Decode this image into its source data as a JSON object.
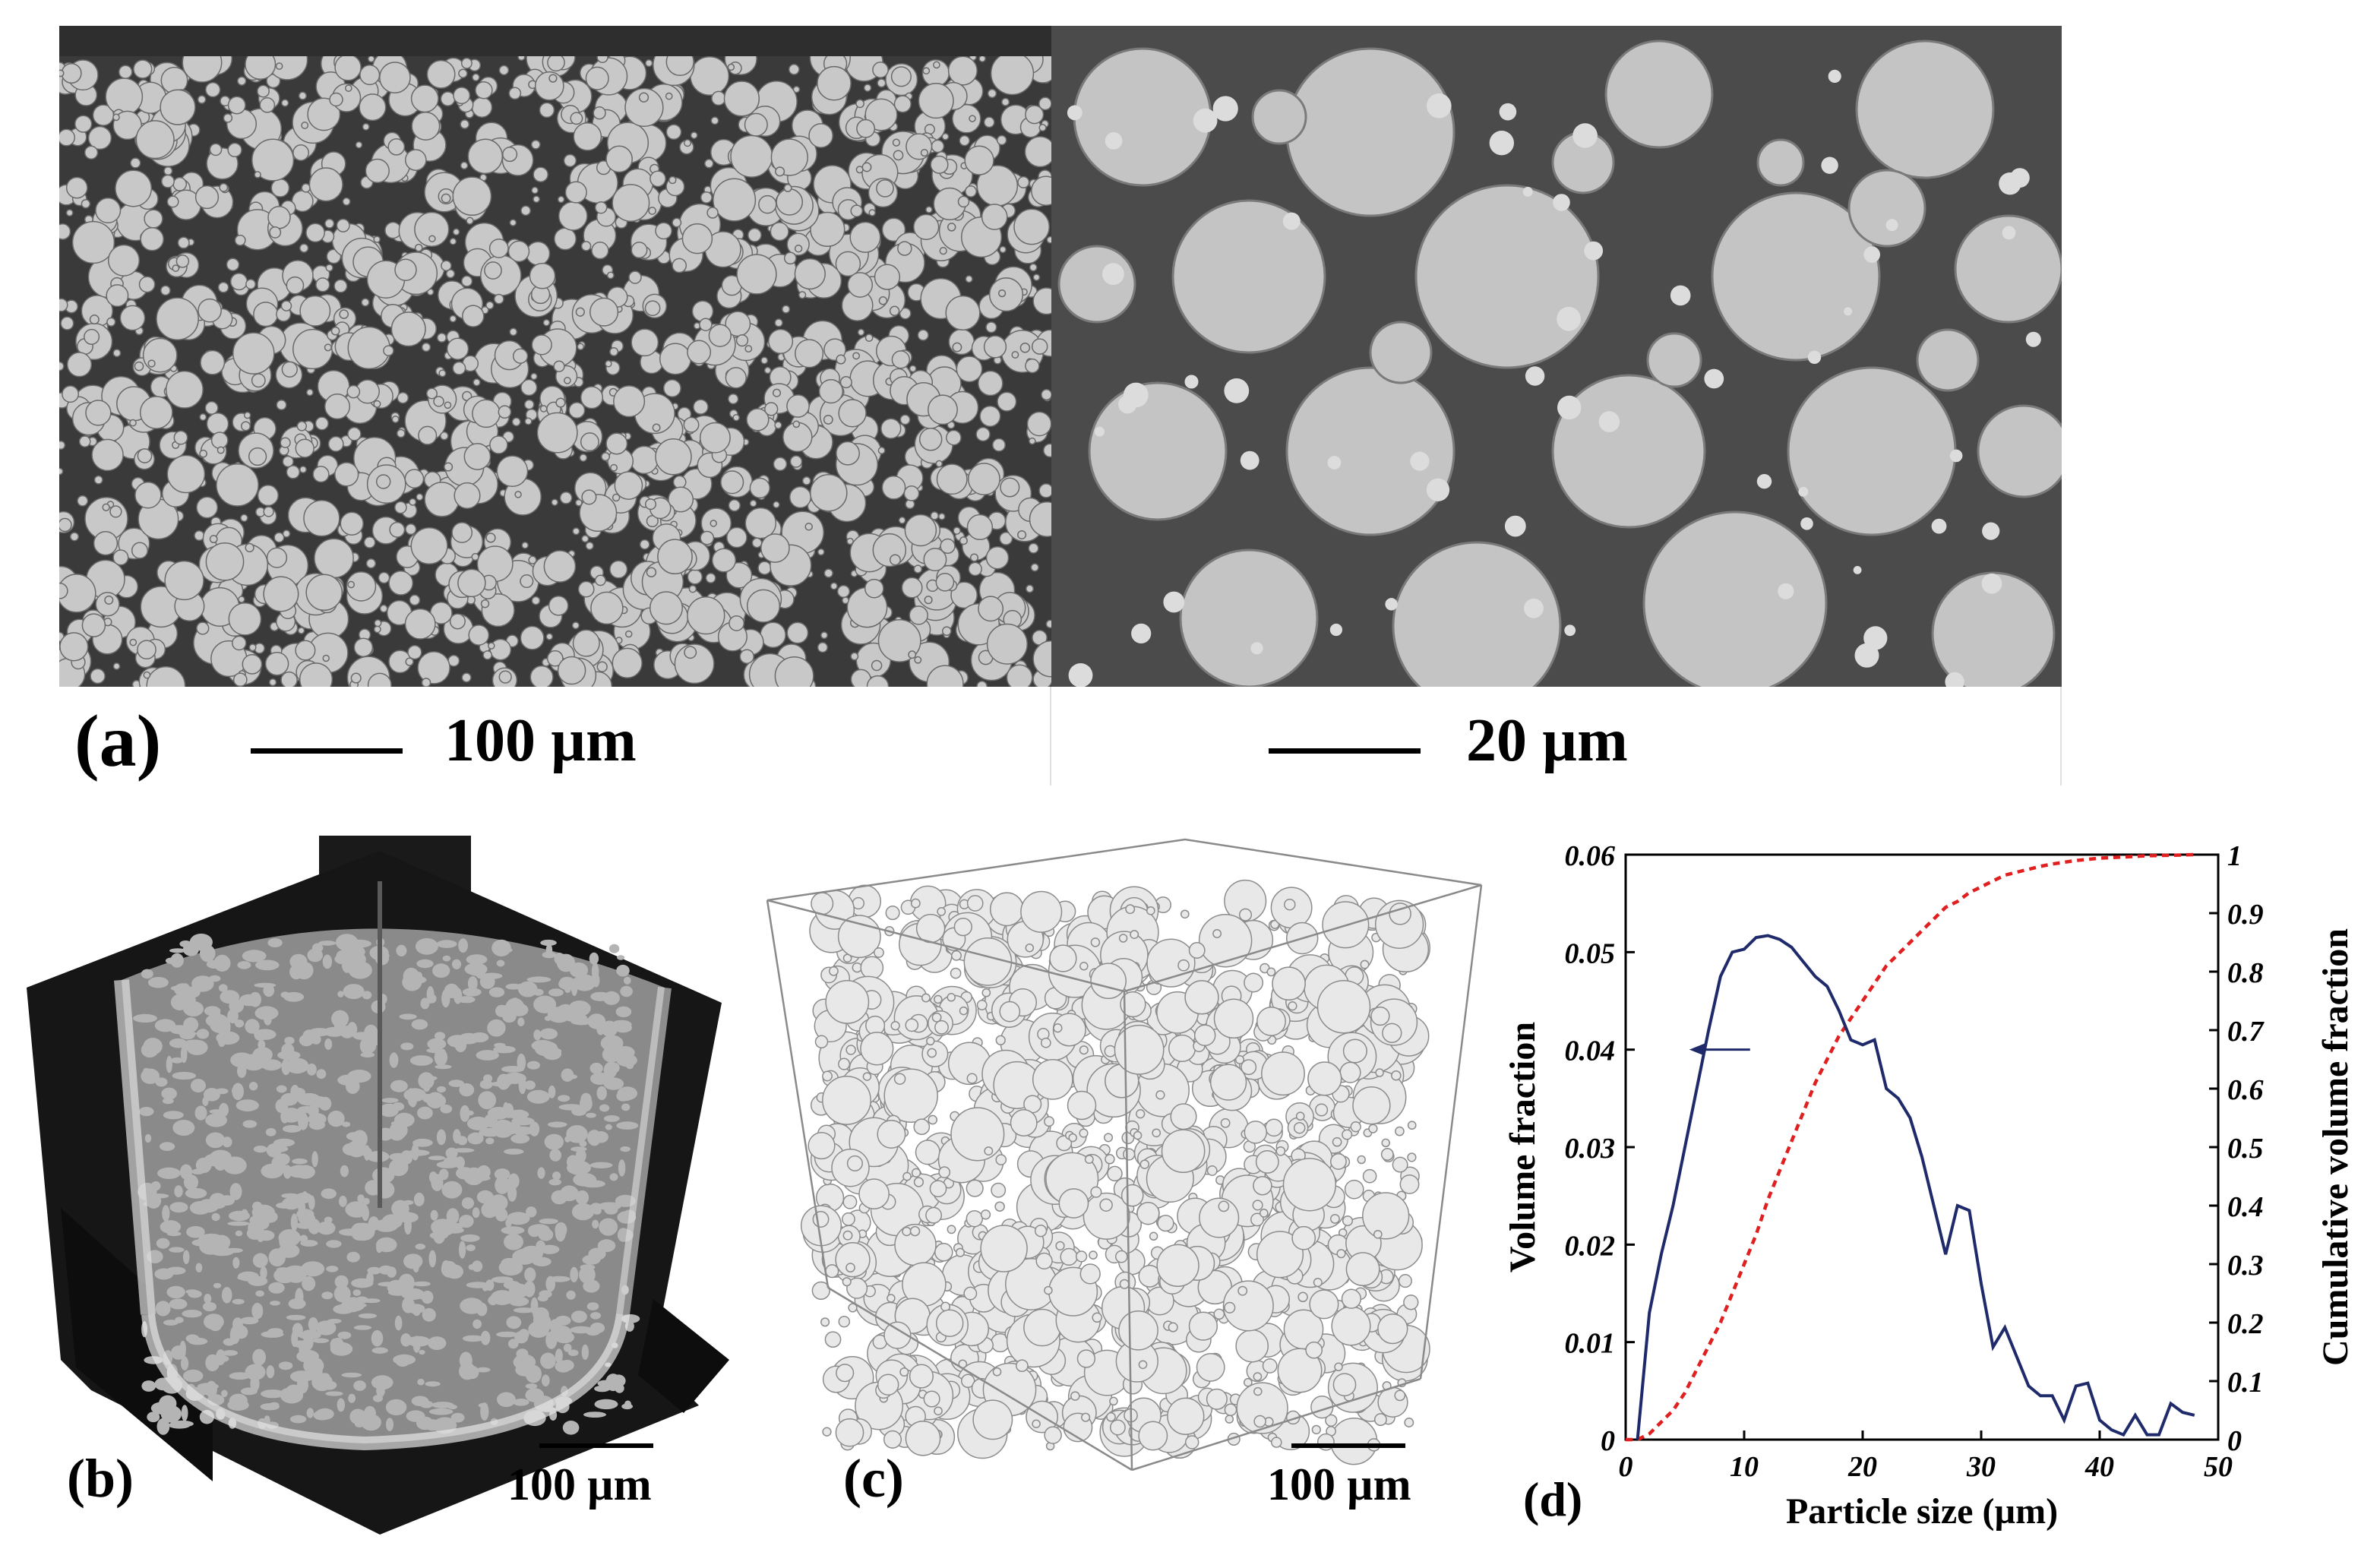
{
  "panel_a": {
    "label": "(a)",
    "scale_left": "100 µm",
    "scale_right": "20 µm"
  },
  "panel_b": {
    "label": "(b)",
    "scale": "100 µm"
  },
  "panel_c": {
    "label": "(c)",
    "scale": "100 µm"
  },
  "panel_d": {
    "label": "(d)"
  },
  "colors": {
    "sem_background": "#3a3a3a",
    "particle": "#c8c8c8",
    "volume_fraction_line": "#1f2a6b",
    "cumulative_line": "#e02020"
  },
  "chart_data": {
    "type": "line",
    "xlabel": "Particle size (µm)",
    "ylabel": "Volume fraction",
    "y2label": "Cumulative volume fraction",
    "xlim": [
      0,
      50
    ],
    "ylim": [
      0,
      0.06
    ],
    "y2lim": [
      0,
      1
    ],
    "xticks": [
      "0",
      "10",
      "20",
      "30",
      "40",
      "50"
    ],
    "yticks": [
      "0",
      "0.01",
      "0.02",
      "0.03",
      "0.04",
      "0.05",
      "0.06"
    ],
    "y2ticks": [
      "0",
      "0.1",
      "0.2",
      "0.3",
      "0.4",
      "0.5",
      "0.6",
      "0.7",
      "0.8",
      "0.9",
      "1"
    ],
    "series": [
      {
        "axis": "left",
        "color": "#1f2a6b",
        "style": "solid",
        "x": [
          1,
          2,
          3,
          4,
          5,
          6,
          7,
          8,
          9,
          10,
          11,
          12,
          13,
          14,
          15,
          16,
          17,
          18,
          19,
          20,
          21,
          22,
          23,
          24,
          25,
          26,
          27,
          28,
          29,
          30,
          31,
          32,
          33,
          34,
          35,
          36,
          37,
          38,
          39,
          40,
          41,
          42,
          43,
          44,
          45,
          46,
          47,
          48
        ],
        "y": [
          0.0,
          0.013,
          0.019,
          0.024,
          0.03,
          0.036,
          0.042,
          0.0475,
          0.05,
          0.0503,
          0.0515,
          0.0517,
          0.0513,
          0.0505,
          0.049,
          0.0475,
          0.0465,
          0.044,
          0.041,
          0.0405,
          0.041,
          0.036,
          0.035,
          0.033,
          0.029,
          0.024,
          0.019,
          0.024,
          0.0235,
          0.016,
          0.0095,
          0.0115,
          0.0085,
          0.0055,
          0.0045,
          0.0045,
          0.002,
          0.0055,
          0.0058,
          0.002,
          0.001,
          0.0005,
          0.0025,
          0.0005,
          0.0005,
          0.0037,
          0.0028,
          0.0025
        ]
      },
      {
        "axis": "right",
        "color": "#e02020",
        "style": "dashed",
        "x": [
          0,
          1,
          2,
          3,
          4,
          5,
          6,
          7,
          8,
          9,
          10,
          11,
          12,
          13,
          14,
          15,
          16,
          17,
          18,
          19,
          20,
          21,
          22,
          23,
          24,
          25,
          26,
          27,
          28,
          29,
          30,
          31,
          32,
          33,
          34,
          35,
          36,
          37,
          38,
          39,
          40,
          42,
          44,
          46,
          48
        ],
        "y": [
          0.0,
          0.0,
          0.01,
          0.03,
          0.05,
          0.08,
          0.12,
          0.16,
          0.2,
          0.25,
          0.3,
          0.35,
          0.41,
          0.46,
          0.51,
          0.56,
          0.61,
          0.65,
          0.69,
          0.72,
          0.75,
          0.78,
          0.81,
          0.83,
          0.85,
          0.87,
          0.89,
          0.91,
          0.92,
          0.935,
          0.945,
          0.955,
          0.965,
          0.97,
          0.975,
          0.98,
          0.984,
          0.987,
          0.99,
          0.992,
          0.994,
          0.996,
          0.998,
          0.999,
          1.0
        ]
      }
    ],
    "annotation": {
      "type": "arrow",
      "points_to": "left-axis",
      "at_x": 10.5,
      "at_y": 0.04
    }
  }
}
